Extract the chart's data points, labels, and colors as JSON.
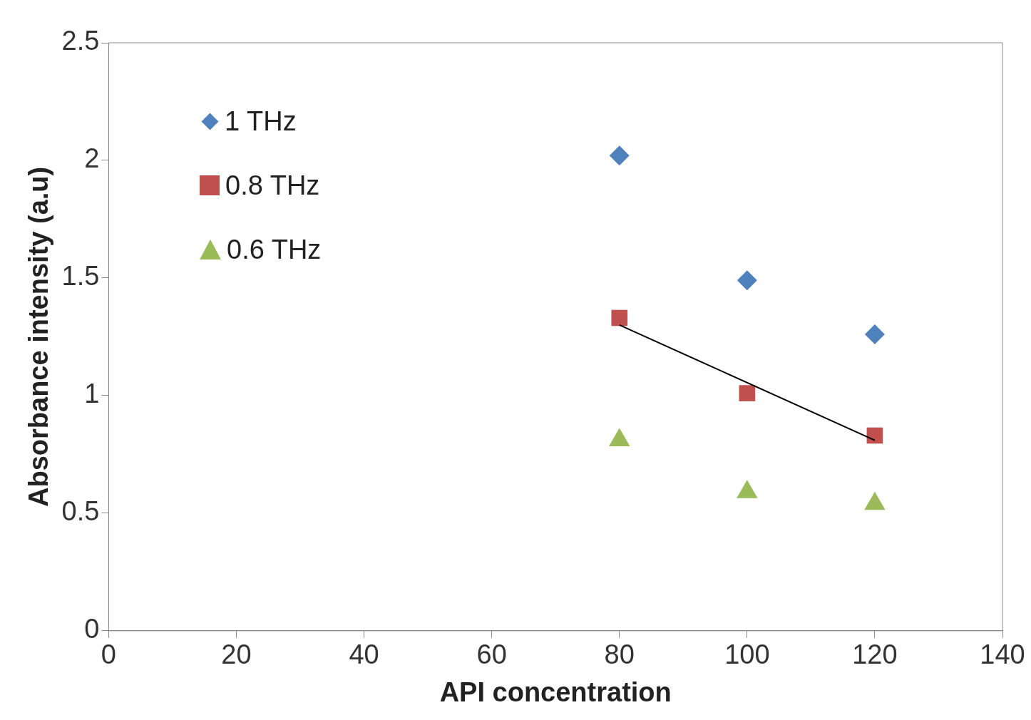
{
  "chart_data": {
    "type": "scatter",
    "xlabel": "API concentration",
    "ylabel": "Absorbance intensity (a.u)",
    "xlim": [
      0,
      140
    ],
    "xticks": [
      0,
      20,
      40,
      60,
      80,
      100,
      120,
      140
    ],
    "ylim": [
      0,
      2.5
    ],
    "yticks": [
      0,
      0.5,
      1,
      1.5,
      2,
      2.5
    ],
    "grid": false,
    "legend": "top left",
    "series": [
      {
        "name": "1 THz",
        "color": "#4f81bd",
        "marker": "diamond",
        "x": [
          80,
          100,
          120
        ],
        "values": [
          2.02,
          1.49,
          1.26
        ]
      },
      {
        "name": "0.8 THz",
        "color": "#c0504d",
        "marker": "square",
        "x": [
          80,
          100,
          120
        ],
        "values": [
          1.33,
          1.01,
          0.83
        ]
      },
      {
        "name": "0.6 THz",
        "color": "#9bbb59",
        "marker": "triangle",
        "x": [
          80,
          100,
          120
        ],
        "values": [
          0.81,
          0.59,
          0.54
        ]
      },
      {
        "type": "line",
        "color": "#000000",
        "marker": "none",
        "x": [
          80,
          120
        ],
        "values": [
          1.3,
          0.81
        ]
      }
    ]
  }
}
